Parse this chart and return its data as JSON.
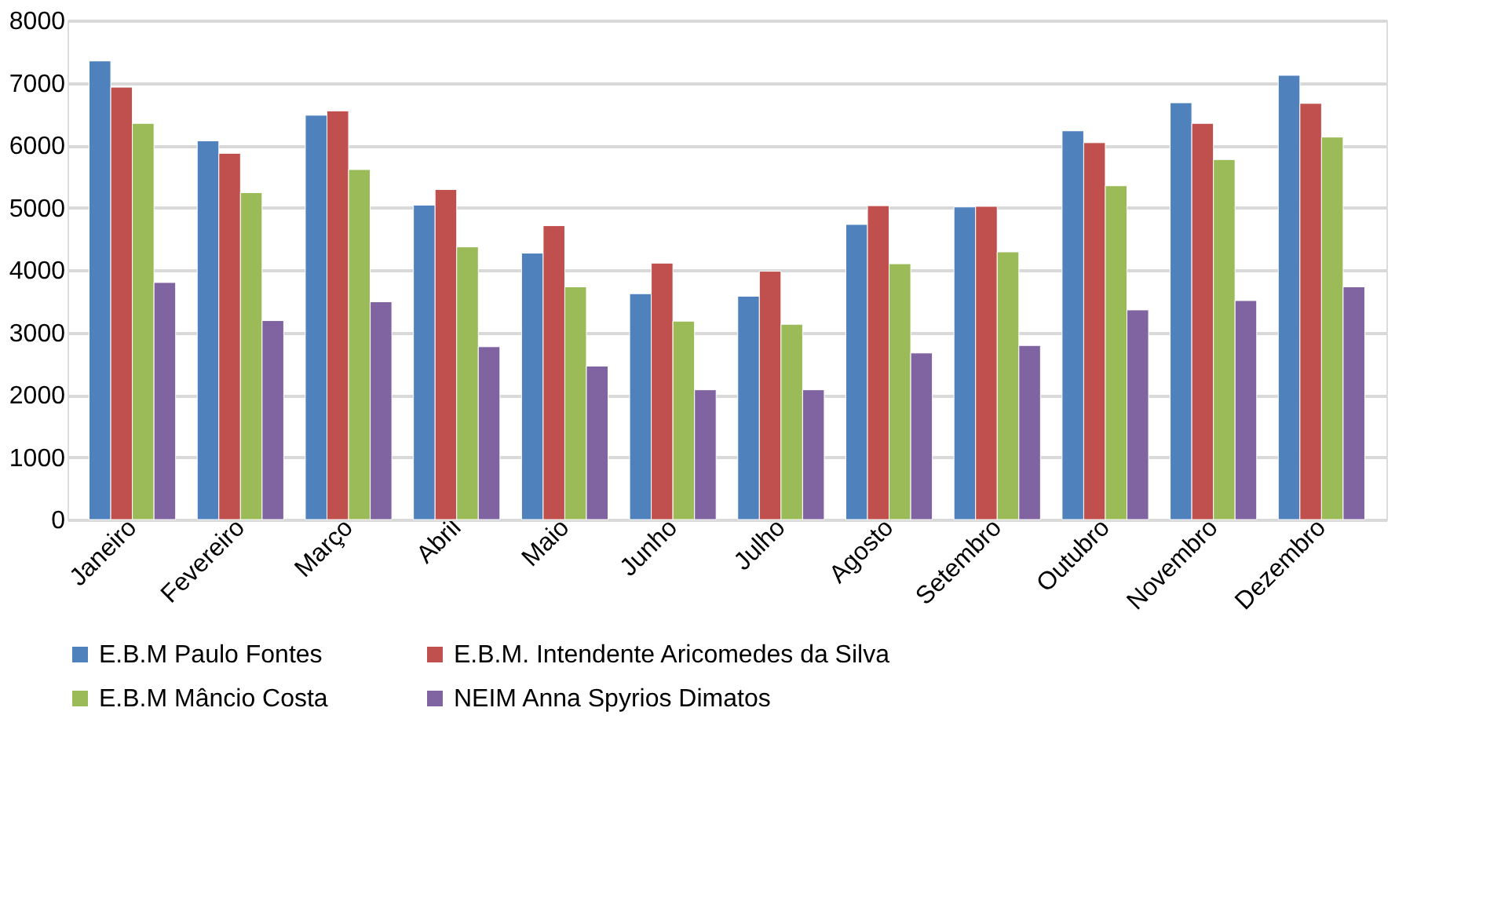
{
  "chart_data": {
    "type": "bar",
    "categories": [
      "Janeiro",
      "Fevereiro",
      "Março",
      "Abril",
      "Maio",
      "Junho",
      "Julho",
      "Agosto",
      "Setembro",
      "Outubro",
      "Novembro",
      "Dezembro"
    ],
    "series": [
      {
        "name": "E.B.M Paulo Fontes",
        "color": "#4f81bd",
        "values": [
          7350,
          6070,
          6480,
          5040,
          4270,
          3620,
          3580,
          4730,
          5010,
          6230,
          6680,
          7120
        ]
      },
      {
        "name": "E.B.M. Intendente Aricomedes da Silva",
        "color": "#c0504d",
        "values": [
          6930,
          5870,
          6550,
          5290,
          4710,
          4110,
          3980,
          5030,
          5020,
          6040,
          6350,
          6670
        ]
      },
      {
        "name": "E.B.M Mâncio Costa",
        "color": "#9bbb59",
        "values": [
          6350,
          5240,
          5610,
          4370,
          3730,
          3180,
          3130,
          4100,
          4290,
          5350,
          5770,
          6130
        ]
      },
      {
        "name": "NEIM Anna Spyrios Dimatos",
        "color": "#8064a2",
        "values": [
          3800,
          3190,
          3490,
          2770,
          2460,
          2080,
          2080,
          2670,
          2790,
          3360,
          3510,
          3730
        ]
      }
    ],
    "ylim": [
      0,
      8000
    ],
    "yticks": [
      0,
      1000,
      2000,
      3000,
      4000,
      5000,
      6000,
      7000,
      8000
    ],
    "grid": "y",
    "legend": "bottom"
  }
}
